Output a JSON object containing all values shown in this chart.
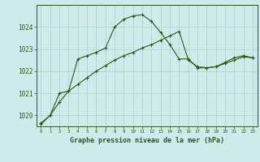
{
  "title": "Graphe pression niveau de la mer (hPa)",
  "bg_color": "#ceeaea",
  "line_color": "#2d5a1b",
  "grid_color": "#b0d8d0",
  "line1_y": [
    1019.65,
    1020.0,
    1020.6,
    1021.1,
    1021.4,
    1021.7,
    1022.0,
    1022.25,
    1022.5,
    1022.7,
    1022.85,
    1023.05,
    1023.2,
    1023.4,
    1023.6,
    1023.8,
    1022.5,
    1022.2,
    1022.15,
    1022.2,
    1022.35,
    1022.5,
    1022.65,
    1022.6
  ],
  "line2_y": [
    1019.6,
    1020.0,
    1021.0,
    1021.1,
    1022.55,
    1022.7,
    1022.85,
    1023.05,
    1024.0,
    1024.35,
    1024.5,
    1024.55,
    1024.25,
    1023.75,
    1023.2,
    1022.55,
    1022.55,
    1022.15,
    1022.15,
    1022.2,
    1022.4,
    1022.6,
    1022.7,
    1022.6
  ],
  "x": [
    0,
    1,
    2,
    3,
    4,
    5,
    6,
    7,
    8,
    9,
    10,
    11,
    12,
    13,
    14,
    15,
    16,
    17,
    18,
    19,
    20,
    21,
    22,
    23
  ],
  "ylim": [
    1019.5,
    1025.0
  ],
  "yticks": [
    1020,
    1021,
    1022,
    1023,
    1024
  ],
  "xtick_labels": [
    "0",
    "1",
    "2",
    "3",
    "4",
    "5",
    "6",
    "7",
    "8",
    "9",
    "10",
    "11",
    "12",
    "13",
    "14",
    "15",
    "16",
    "17",
    "18",
    "19",
    "20",
    "21",
    "22",
    "23"
  ]
}
